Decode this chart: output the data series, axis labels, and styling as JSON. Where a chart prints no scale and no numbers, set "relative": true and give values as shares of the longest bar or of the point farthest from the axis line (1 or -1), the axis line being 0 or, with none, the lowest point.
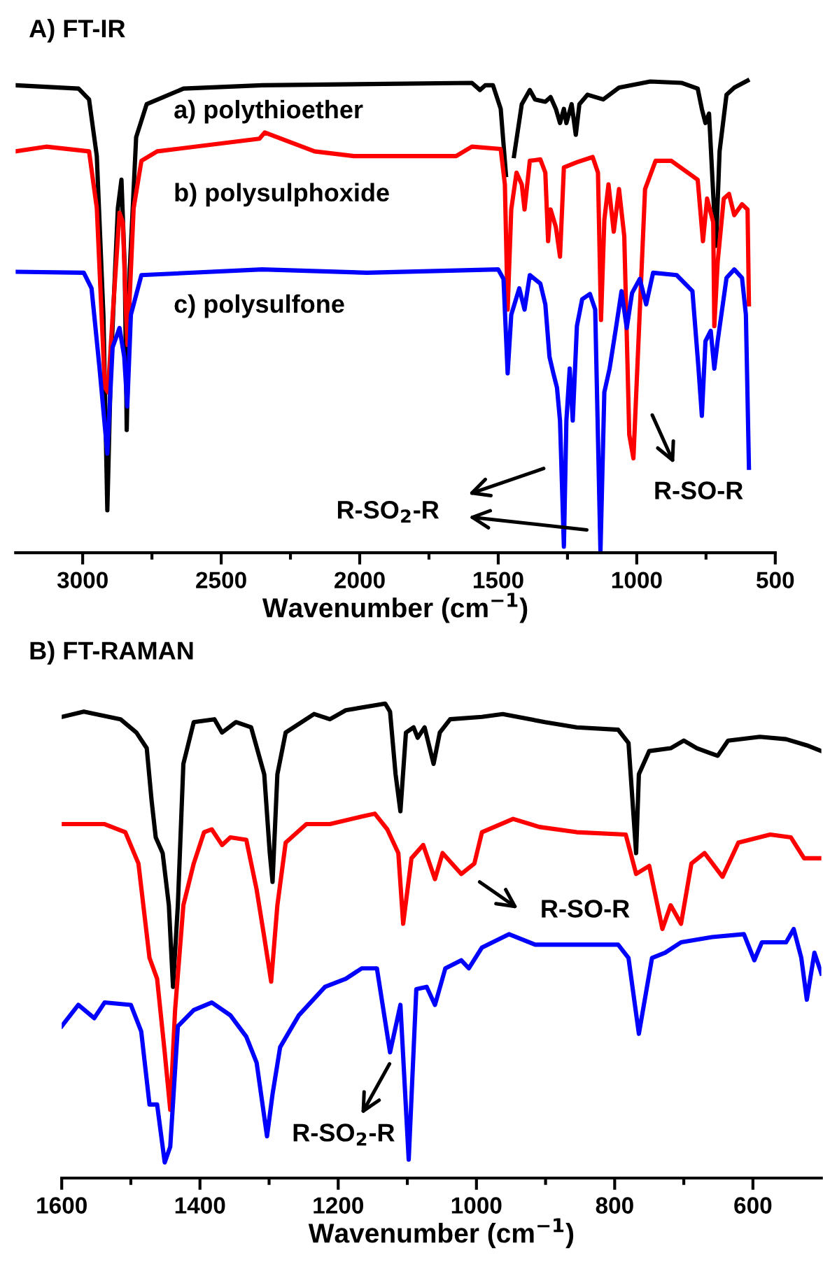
{
  "chart_data": [
    {
      "type": "line",
      "title": "A) FT-IR",
      "xlabel": "Wavenumber (cm$^{−1}$)",
      "relative": true,
      "xlim": [
        3242,
        500
      ],
      "xticks": [
        3000,
        {
          "value": 2750,
          "label": null
        },
        2500,
        {
          "value": 2250,
          "label": null
        },
        2000,
        {
          "value": 1750,
          "label": null
        },
        1500,
        {
          "value": 1250,
          "label": null
        },
        1000,
        {
          "value": 750,
          "label": null
        },
        500
      ],
      "annotations": [
        "R-SO$_{2}$-R",
        "R-SO-R"
      ],
      "series": [
        {
          "name": "a) polythioether",
          "color": "#000000",
          "x": [
            3242,
            3015,
            2977,
            2949,
            2925,
            2911,
            2898,
            2873,
            2860,
            2848,
            2841,
            2830,
            2807,
            2769,
            2636,
            2352,
            1595,
            1566,
            1547,
            1519,
            1491,
            1472,
            1462,
            1443,
            1415,
            1386,
            1367,
            1330,
            1311,
            1292,
            1277,
            1263,
            1254,
            1235,
            1220,
            1207,
            1178,
            1121,
            1064,
            951,
            837,
            780,
            765,
            752,
            739,
            724,
            714,
            701,
            676,
            648,
            600
          ],
          "values": [
            0.99,
            0.983,
            0.96,
            0.84,
            0.5,
            0.09,
            0.4,
            0.73,
            0.79,
            0.6,
            0.26,
            0.6,
            0.88,
            0.95,
            0.983,
            0.99,
            0.995,
            0.98,
            0.99,
            0.99,
            0.94,
            0.8,
            null,
            0.84,
            0.95,
            0.98,
            0.96,
            0.955,
            0.965,
            0.94,
            0.91,
            0.94,
            0.91,
            0.95,
            0.885,
            0.95,
            0.97,
            0.96,
            0.985,
            0.998,
            0.995,
            0.983,
            0.94,
            0.91,
            0.93,
            0.76,
            0.65,
            0.85,
            0.97,
            0.985,
            1.0
          ]
        },
        {
          "name": "b) polysulphoxide",
          "color": "#ff0000",
          "x": [
            3242,
            3132,
            2977,
            2949,
            2920,
            2909,
            2892,
            2867,
            2855,
            2843,
            2838,
            2816,
            2788,
            2731,
            2362,
            2343,
            2163,
            2021,
            1652,
            1595,
            1491,
            1476,
            1466,
            1453,
            1434,
            1415,
            1405,
            1386,
            1348,
            1330,
            1320,
            1311,
            1292,
            1277,
            1263,
            1216,
            1159,
            1140,
            1129,
            1117,
            1102,
            1083,
            1064,
            1045,
            1027,
            1012,
            998,
            970,
            932,
            875,
            780,
            761,
            746,
            724,
            720,
            708,
            686,
            667,
            648,
            620,
            600,
            595
          ],
          "values": [
            0.85,
            0.86,
            0.85,
            0.73,
            0.35,
            0.34,
            0.5,
            0.72,
            0.7,
            0.5,
            0.44,
            0.73,
            0.83,
            0.85,
            0.877,
            0.89,
            0.85,
            0.84,
            0.84,
            0.86,
            0.855,
            0.78,
            0.515,
            0.727,
            0.805,
            0.78,
            0.727,
            0.83,
            0.833,
            0.805,
            0.66,
            0.727,
            0.69,
            0.627,
            0.816,
            0.827,
            0.838,
            0.805,
            0.493,
            0.705,
            0.78,
            0.68,
            0.77,
            0.67,
            0.25,
            0.2,
            0.39,
            0.77,
            0.83,
            0.83,
            0.79,
            0.66,
            0.75,
            0.7,
            0.48,
            0.615,
            0.75,
            0.76,
            0.715,
            0.738,
            0.727,
            0.526
          ]
        },
        {
          "name": "c) polysulfone",
          "color": "#0000ff",
          "x": [
            3242,
            2996,
            2968,
            2939,
            2911,
            2892,
            2867,
            2850,
            2839,
            2826,
            2788,
            2352,
            1974,
            1500,
            1481,
            1466,
            1453,
            1424,
            1405,
            1386,
            1348,
            1330,
            1315,
            1301,
            1288,
            1277,
            1263,
            1254,
            1242,
            1231,
            1216,
            1197,
            1169,
            1150,
            1131,
            1117,
            1098,
            1074,
            1055,
            1036,
            1017,
            989,
            966,
            941,
            856,
            799,
            777,
            765,
            752,
            733,
            720,
            708,
            676,
            648,
            620,
            606,
            595
          ],
          "values": [
            0.595,
            0.593,
            0.56,
            0.39,
            0.21,
            0.435,
            0.476,
            0.415,
            0.31,
            0.504,
            0.588,
            0.6,
            0.593,
            0.6,
            0.58,
            0.38,
            0.504,
            0.56,
            0.515,
            0.588,
            0.57,
            0.526,
            0.415,
            0.38,
            0.35,
            0.28,
            0.013,
            0.28,
            0.39,
            0.28,
            0.48,
            0.537,
            0.548,
            0.515,
            0.002,
            0.34,
            0.39,
            0.48,
            0.554,
            0.476,
            0.55,
            0.58,
            0.526,
            0.593,
            0.588,
            0.554,
            0.39,
            0.29,
            0.448,
            0.47,
            0.39,
            0.448,
            0.582,
            0.6,
            0.582,
            0.504,
            0.18
          ]
        }
      ]
    },
    {
      "type": "line",
      "title": "B) FT-RAMAN",
      "xlabel": "Wavenumber (cm$^{−1}$)",
      "relative": true,
      "xlim": [
        1600,
        501
      ],
      "xticks": [
        1600,
        {
          "value": 1500,
          "label": null
        },
        1400,
        {
          "value": 1300,
          "label": null
        },
        1200,
        {
          "value": 1100,
          "label": null
        },
        1000,
        {
          "value": 900,
          "label": null
        },
        800,
        {
          "value": 700,
          "label": null
        },
        600
      ],
      "annotations": [
        "R-SO-R",
        "R-SO$_{2}$-R"
      ],
      "series": [
        {
          "color": "#000000",
          "x": [
            1600,
            1568,
            1515,
            1492,
            1477,
            1470,
            1464,
            1454,
            1445,
            1439,
            1432,
            1424,
            1409,
            1379,
            1368,
            1348,
            1326,
            1307,
            1299,
            1295,
            1288,
            1276,
            1235,
            1212,
            1189,
            1132,
            1125,
            1117,
            1110,
            1102,
            1091,
            1085,
            1075,
            1062,
            1053,
            1038,
            992,
            962,
            901,
            855,
            795,
            780,
            769,
            765,
            750,
            719,
            700,
            681,
            651,
            636,
            590,
            552,
            522,
            501
          ],
          "values": [
            0.972,
            0.983,
            0.967,
            0.939,
            0.906,
            0.796,
            0.718,
            0.685,
            0.575,
            0.403,
            0.575,
            0.873,
            0.961,
            0.967,
            0.939,
            0.961,
            0.95,
            0.851,
            0.685,
            0.624,
            0.851,
            0.939,
            0.978,
            0.967,
            0.986,
            1.0,
            0.983,
            0.851,
            0.773,
            0.939,
            0.95,
            0.928,
            0.95,
            0.873,
            0.939,
            0.967,
            0.972,
            0.978,
            0.961,
            0.95,
            0.945,
            0.917,
            0.685,
            0.851,
            0.9,
            0.906,
            0.922,
            0.906,
            0.89,
            0.922,
            0.93,
            0.925,
            0.912,
            0.9
          ]
        },
        {
          "color": "#ff0000",
          "x": [
            1600,
            1538,
            1508,
            1489,
            1473,
            1462,
            1451,
            1443,
            1436,
            1424,
            1409,
            1394,
            1383,
            1368,
            1356,
            1333,
            1318,
            1307,
            1297,
            1288,
            1276,
            1246,
            1212,
            1166,
            1147,
            1129,
            1113,
            1106,
            1094,
            1077,
            1060,
            1049,
            1022,
            1003,
            992,
            947,
            909,
            855,
            784,
            769,
            750,
            731,
            719,
            704,
            689,
            670,
            644,
            621,
            575,
            545,
            526,
            501
          ],
          "values": [
            0.746,
            0.746,
            0.729,
            0.663,
            0.464,
            0.42,
            0.265,
            0.144,
            0.354,
            0.575,
            0.663,
            0.729,
            0.735,
            0.702,
            0.718,
            0.713,
            0.608,
            0.508,
            0.414,
            0.575,
            0.707,
            0.746,
            0.746,
            0.762,
            0.768,
            0.735,
            0.685,
            0.536,
            0.674,
            0.702,
            0.63,
            0.685,
            0.641,
            0.663,
            0.729,
            0.757,
            0.74,
            0.729,
            0.724,
            0.641,
            0.658,
            0.525,
            0.575,
            0.536,
            0.663,
            0.685,
            0.635,
            0.707,
            0.724,
            0.718,
            0.674,
            0.674
          ]
        },
        {
          "color": "#0000ff",
          "x": [
            1600,
            1576,
            1553,
            1538,
            1500,
            1485,
            1473,
            1462,
            1451,
            1443,
            1432,
            1409,
            1383,
            1356,
            1333,
            1318,
            1303,
            1295,
            1284,
            1257,
            1219,
            1189,
            1166,
            1144,
            1125,
            1110,
            1098,
            1087,
            1072,
            1060,
            1045,
            1022,
            1011,
            992,
            953,
            915,
            855,
            795,
            780,
            765,
            746,
            727,
            704,
            659,
            613,
            598,
            587,
            552,
            541,
            530,
            522,
            511,
            501
          ],
          "values": [
            0.32,
            0.365,
            0.337,
            0.37,
            0.365,
            0.309,
            0.155,
            0.155,
            0.033,
            0.066,
            0.32,
            0.354,
            0.37,
            0.343,
            0.298,
            0.243,
            0.088,
            0.177,
            0.276,
            0.343,
            0.403,
            0.42,
            0.442,
            0.442,
            0.265,
            0.365,
            0.039,
            0.398,
            0.403,
            0.365,
            0.442,
            0.459,
            0.442,
            0.486,
            0.514,
            0.492,
            0.492,
            0.492,
            0.464,
            0.304,
            0.464,
            0.475,
            0.497,
            0.508,
            0.514,
            0.459,
            0.497,
            0.497,
            0.525,
            0.464,
            0.376,
            0.475,
            0.431
          ]
        }
      ]
    }
  ]
}
